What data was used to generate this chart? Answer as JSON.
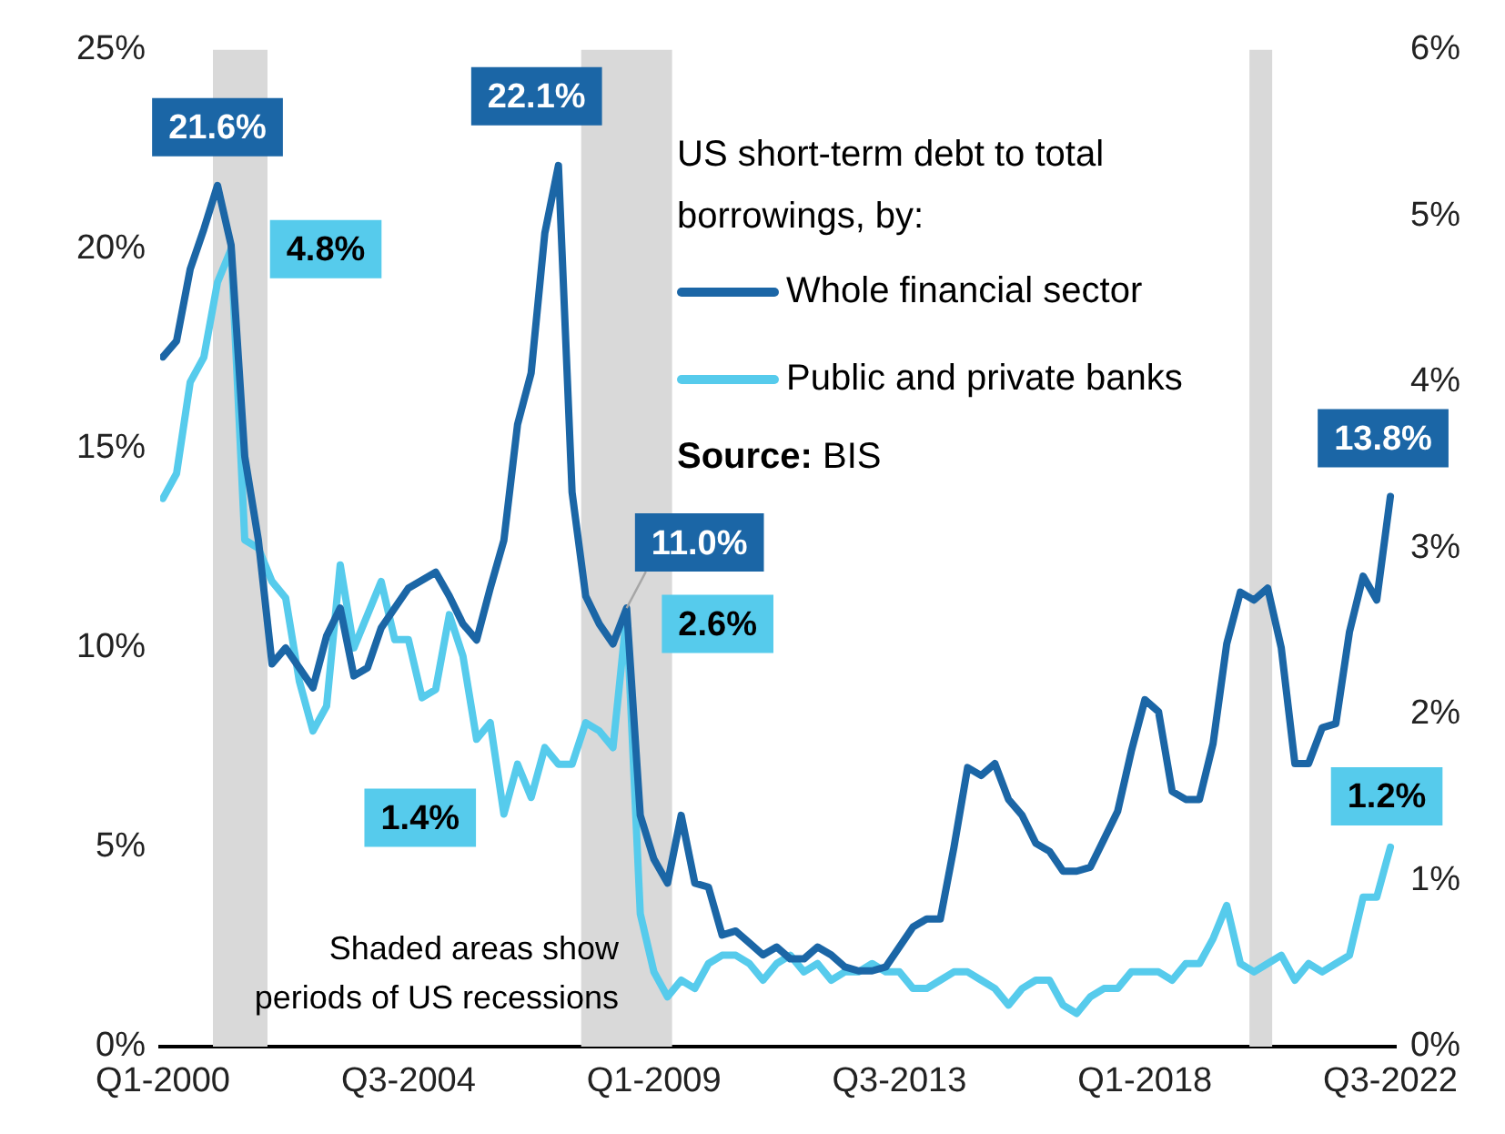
{
  "chart_data": {
    "type": "line",
    "x": [
      "2000-01",
      "2000-04",
      "2000-07",
      "2000-10",
      "2001-01",
      "2001-04",
      "2001-07",
      "2001-10",
      "2002-01",
      "2002-04",
      "2002-07",
      "2002-10",
      "2003-01",
      "2003-04",
      "2003-07",
      "2003-10",
      "2004-01",
      "2004-04",
      "2004-07",
      "2004-10",
      "2005-01",
      "2005-04",
      "2005-07",
      "2005-10",
      "2006-01",
      "2006-04",
      "2006-07",
      "2006-10",
      "2007-01",
      "2007-04",
      "2007-07",
      "2007-10",
      "2008-01",
      "2008-04",
      "2008-07",
      "2008-10",
      "2009-01",
      "2009-04",
      "2009-07",
      "2009-10",
      "2010-01",
      "2010-04",
      "2010-07",
      "2010-10",
      "2011-01",
      "2011-04",
      "2011-07",
      "2011-10",
      "2012-01",
      "2012-04",
      "2012-07",
      "2012-10",
      "2013-01",
      "2013-04",
      "2013-07",
      "2013-10",
      "2014-01",
      "2014-04",
      "2014-07",
      "2014-10",
      "2015-01",
      "2015-04",
      "2015-07",
      "2015-10",
      "2016-01",
      "2016-04",
      "2016-07",
      "2016-10",
      "2017-01",
      "2017-04",
      "2017-07",
      "2017-10",
      "2018-01",
      "2018-04",
      "2018-07",
      "2018-10",
      "2019-01",
      "2019-04",
      "2019-07",
      "2019-10",
      "2020-01",
      "2020-04",
      "2020-07",
      "2020-10",
      "2021-01",
      "2021-04",
      "2021-07",
      "2021-10",
      "2022-01",
      "2022-04",
      "2022-07"
    ],
    "legend_title": "US short-term debt to total borrowings, by:",
    "legend": "top right",
    "series": [
      {
        "name": "Whole financial sector",
        "color": "#1b66a6",
        "values": [
          17.3,
          17.7,
          19.5,
          20.5,
          21.6,
          20.1,
          14.8,
          12.7,
          9.6,
          10.0,
          9.5,
          9.0,
          10.3,
          11.0,
          9.3,
          9.5,
          10.5,
          11.0,
          11.5,
          11.7,
          11.9,
          11.3,
          10.6,
          10.2,
          11.5,
          12.7,
          15.6,
          16.9,
          20.4,
          22.1,
          13.9,
          11.3,
          10.6,
          10.1,
          11.0,
          5.8,
          4.7,
          4.1,
          5.8,
          4.1,
          4.0,
          2.8,
          2.9,
          2.6,
          2.3,
          2.5,
          2.2,
          2.2,
          2.5,
          2.3,
          2.0,
          1.9,
          1.9,
          2.0,
          2.5,
          3.0,
          3.2,
          3.2,
          5.0,
          7.0,
          6.8,
          7.1,
          6.2,
          5.8,
          5.1,
          4.9,
          4.4,
          4.4,
          4.5,
          5.2,
          5.9,
          7.4,
          8.7,
          8.4,
          6.4,
          6.2,
          6.2,
          7.6,
          10.1,
          11.4,
          11.2,
          11.5,
          10.0,
          7.1,
          7.1,
          8.0,
          8.1,
          10.4,
          11.8,
          11.2,
          13.8
        ],
        "value_labels": [
          null,
          null,
          null,
          null,
          "21.6%",
          null,
          null,
          null,
          null,
          null,
          null,
          null,
          null,
          null,
          null,
          null,
          null,
          null,
          null,
          null,
          null,
          null,
          null,
          null,
          null,
          null,
          null,
          null,
          null,
          "22.1%",
          null,
          null,
          null,
          null,
          "11.0%",
          null,
          null,
          null,
          null,
          null,
          null,
          null,
          null,
          null,
          null,
          null,
          null,
          null,
          null,
          null,
          null,
          null,
          null,
          null,
          null,
          null,
          null,
          null,
          null,
          null,
          null,
          null,
          null,
          null,
          null,
          null,
          null,
          null,
          null,
          null,
          null,
          null,
          null,
          null,
          null,
          null,
          null,
          null,
          null,
          null,
          null,
          null,
          null,
          null,
          null,
          null,
          null,
          null,
          null,
          null,
          "13.8%"
        ]
      },
      {
        "name": "Public and private banks",
        "color": "#56cbec",
        "axis": "y2",
        "values": [
          3.3,
          3.45,
          4.0,
          4.15,
          4.6,
          4.8,
          3.05,
          3.0,
          2.8,
          2.7,
          2.2,
          1.9,
          2.05,
          2.9,
          2.4,
          2.6,
          2.8,
          2.45,
          2.45,
          2.1,
          2.15,
          2.6,
          2.35,
          1.85,
          1.95,
          1.4,
          1.7,
          1.5,
          1.8,
          1.7,
          1.7,
          1.95,
          1.9,
          1.8,
          2.6,
          0.8,
          0.45,
          0.3,
          0.4,
          0.35,
          0.5,
          0.55,
          0.55,
          0.5,
          0.4,
          0.5,
          0.55,
          0.45,
          0.5,
          0.4,
          0.45,
          0.45,
          0.5,
          0.45,
          0.45,
          0.35,
          0.35,
          0.4,
          0.45,
          0.45,
          0.4,
          0.35,
          0.25,
          0.35,
          0.4,
          0.4,
          0.25,
          0.2,
          0.3,
          0.35,
          0.35,
          0.45,
          0.45,
          0.45,
          0.4,
          0.5,
          0.5,
          0.65,
          0.85,
          0.5,
          0.45,
          0.5,
          0.55,
          0.4,
          0.5,
          0.45,
          0.5,
          0.55,
          0.9,
          0.9,
          1.2
        ],
        "value_labels": [
          null,
          null,
          null,
          null,
          null,
          "4.8%",
          null,
          null,
          null,
          null,
          null,
          null,
          null,
          null,
          null,
          null,
          null,
          null,
          null,
          null,
          null,
          null,
          null,
          null,
          null,
          "1.4%",
          null,
          null,
          null,
          null,
          null,
          null,
          null,
          null,
          "2.6%",
          null,
          null,
          null,
          null,
          null,
          null,
          null,
          null,
          null,
          null,
          null,
          null,
          null,
          null,
          null,
          null,
          null,
          null,
          null,
          null,
          null,
          null,
          null,
          null,
          null,
          null,
          null,
          null,
          null,
          null,
          null,
          null,
          null,
          null,
          null,
          null,
          null,
          null,
          null,
          null,
          null,
          null,
          null,
          null,
          null,
          null,
          null,
          null,
          null,
          null,
          null,
          null,
          null,
          null,
          null,
          "1.2%"
        ]
      }
    ],
    "xlim": [
      "1999-12-13",
      "2022-08-07"
    ],
    "xticks": [
      {
        "value": "2000-01",
        "label": "Q1-2000"
      },
      {
        "value": "2004-07",
        "label": "Q3-2004"
      },
      {
        "value": "2009-01",
        "label": "Q1-2009"
      },
      {
        "value": "2013-07",
        "label": "Q3-2013"
      },
      {
        "value": "2018-01",
        "label": "Q1-2018"
      },
      {
        "value": "2022-07",
        "label": "Q3-2022"
      }
    ],
    "ylim": [
      0,
      25
    ],
    "yticks": [
      {
        "value": 0,
        "label": "0%"
      },
      {
        "value": 5,
        "label": "5%"
      },
      {
        "value": 10,
        "label": "10%"
      },
      {
        "value": 15,
        "label": "15%"
      },
      {
        "value": 20,
        "label": "20%"
      },
      {
        "value": 25,
        "label": "25%"
      }
    ],
    "y2lim": [
      0,
      6
    ],
    "y2ticks": [
      {
        "value": 0,
        "label": "0%"
      },
      {
        "value": 1,
        "label": "1%"
      },
      {
        "value": 2,
        "label": "2%"
      },
      {
        "value": 3,
        "label": "3%"
      },
      {
        "value": 4,
        "label": "4%"
      },
      {
        "value": 5,
        "label": "5%"
      },
      {
        "value": 6,
        "label": "6%"
      }
    ],
    "bands": [
      {
        "axis": "x",
        "from": "2000-12",
        "to": "2001-12",
        "color": "#d9d9d9"
      },
      {
        "axis": "x",
        "from": "2007-09",
        "to": "2009-05",
        "color": "#d9d9d9"
      },
      {
        "axis": "x",
        "from": "2019-12",
        "to": "2020-05",
        "color": "#d9d9d9"
      }
    ],
    "annotations": [
      "Source: BIS",
      "Shaded areas show periods of US recessions"
    ]
  }
}
